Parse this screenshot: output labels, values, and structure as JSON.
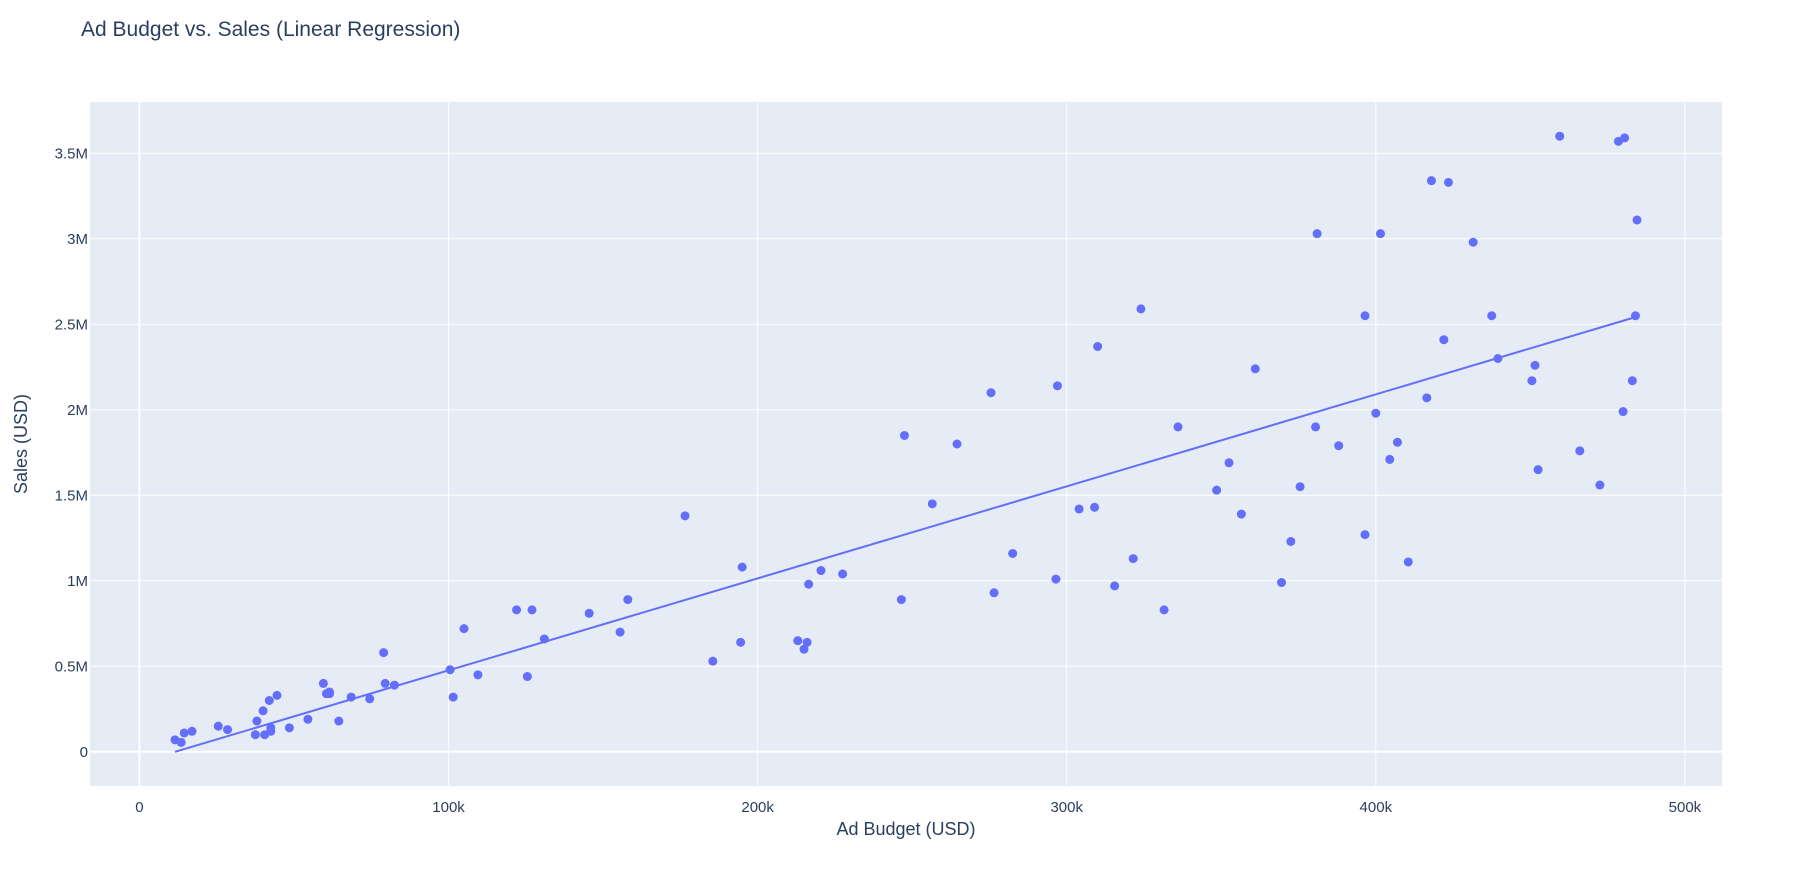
{
  "chart_data": {
    "type": "scatter",
    "title": "Ad Budget vs. Sales (Linear Regression)",
    "xlabel": "Ad Budget (USD)",
    "ylabel": "Sales (USD)",
    "xlim": [
      -16000,
      512000
    ],
    "ylim": [
      -200000,
      3800000
    ],
    "xticks": [
      {
        "value": 0,
        "label": "0"
      },
      {
        "value": 100000,
        "label": "100k"
      },
      {
        "value": 200000,
        "label": "200k"
      },
      {
        "value": 300000,
        "label": "300k"
      },
      {
        "value": 400000,
        "label": "400k"
      },
      {
        "value": 500000,
        "label": "500k"
      }
    ],
    "yticks": [
      {
        "value": 0,
        "label": "0"
      },
      {
        "value": 500000,
        "label": "0.5M"
      },
      {
        "value": 1000000,
        "label": "1M"
      },
      {
        "value": 1500000,
        "label": "1.5M"
      },
      {
        "value": 2000000,
        "label": "2M"
      },
      {
        "value": 2500000,
        "label": "2.5M"
      },
      {
        "value": 3000000,
        "label": "3M"
      },
      {
        "value": 3500000,
        "label": "3.5M"
      }
    ],
    "grid": true,
    "colors": {
      "marker": "#636efa",
      "line": "#636efa",
      "plot_bg": "#e5ecf6",
      "grid": "#ffffff",
      "text": "#2a3f5f"
    },
    "series": [
      {
        "type": "scatter",
        "points": [
          [
            11500,
            70000
          ],
          [
            13500,
            55000
          ],
          [
            14500,
            110000
          ],
          [
            17000,
            120000
          ],
          [
            25500,
            150000
          ],
          [
            28500,
            130000
          ],
          [
            37500,
            100000
          ],
          [
            38000,
            180000
          ],
          [
            40000,
            240000
          ],
          [
            40500,
            100000
          ],
          [
            42000,
            300000
          ],
          [
            42500,
            140000
          ],
          [
            42500,
            120000
          ],
          [
            44500,
            330000
          ],
          [
            48500,
            140000
          ],
          [
            54500,
            190000
          ],
          [
            59500,
            400000
          ],
          [
            60500,
            340000
          ],
          [
            61500,
            350000
          ],
          [
            61500,
            340000
          ],
          [
            64500,
            180000
          ],
          [
            68500,
            320000
          ],
          [
            74500,
            310000
          ],
          [
            79000,
            580000
          ],
          [
            79500,
            400000
          ],
          [
            82500,
            390000
          ],
          [
            100500,
            480000
          ],
          [
            101500,
            320000
          ],
          [
            105000,
            720000
          ],
          [
            109500,
            450000
          ],
          [
            122000,
            830000
          ],
          [
            125500,
            440000
          ],
          [
            127000,
            830000
          ],
          [
            131000,
            660000
          ],
          [
            145500,
            810000
          ],
          [
            155500,
            700000
          ],
          [
            158000,
            890000
          ],
          [
            176500,
            1380000
          ],
          [
            185500,
            530000
          ],
          [
            194500,
            640000
          ],
          [
            195000,
            1080000
          ],
          [
            213000,
            650000
          ],
          [
            215000,
            600000
          ],
          [
            216000,
            640000
          ],
          [
            216500,
            980000
          ],
          [
            220500,
            1060000
          ],
          [
            227500,
            1040000
          ],
          [
            246500,
            890000
          ],
          [
            247500,
            1850000
          ],
          [
            256500,
            1450000
          ],
          [
            264500,
            1800000
          ],
          [
            275500,
            2100000
          ],
          [
            276500,
            930000
          ],
          [
            282500,
            1160000
          ],
          [
            296500,
            1010000
          ],
          [
            297000,
            2140000
          ],
          [
            304000,
            1420000
          ],
          [
            309000,
            1430000
          ],
          [
            310000,
            2370000
          ],
          [
            315500,
            970000
          ],
          [
            321500,
            1130000
          ],
          [
            324000,
            2590000
          ],
          [
            331500,
            830000
          ],
          [
            336000,
            1900000
          ],
          [
            348500,
            1530000
          ],
          [
            352500,
            1690000
          ],
          [
            356500,
            1390000
          ],
          [
            361000,
            2240000
          ],
          [
            369500,
            990000
          ],
          [
            372500,
            1230000
          ],
          [
            375500,
            1550000
          ],
          [
            380500,
            1900000
          ],
          [
            381000,
            3030000
          ],
          [
            388000,
            1790000
          ],
          [
            396500,
            2550000
          ],
          [
            396500,
            1270000
          ],
          [
            400000,
            1980000
          ],
          [
            401500,
            3030000
          ],
          [
            404500,
            1710000
          ],
          [
            407000,
            1810000
          ],
          [
            410500,
            1110000
          ],
          [
            416500,
            2070000
          ],
          [
            418000,
            3340000
          ],
          [
            422000,
            2410000
          ],
          [
            423500,
            3330000
          ],
          [
            431500,
            2980000
          ],
          [
            437500,
            2550000
          ],
          [
            439500,
            2300000
          ],
          [
            450500,
            2170000
          ],
          [
            451500,
            2260000
          ],
          [
            452500,
            1650000
          ],
          [
            459500,
            3600000
          ],
          [
            466000,
            1760000
          ],
          [
            472500,
            1560000
          ],
          [
            478500,
            3570000
          ],
          [
            480000,
            1990000
          ],
          [
            480500,
            3590000
          ],
          [
            483000,
            2170000
          ],
          [
            484000,
            2550000
          ],
          [
            484500,
            3110000
          ]
        ]
      },
      {
        "type": "line",
        "points": [
          [
            11500,
            0
          ],
          [
            484500,
            2545000
          ]
        ]
      }
    ]
  }
}
